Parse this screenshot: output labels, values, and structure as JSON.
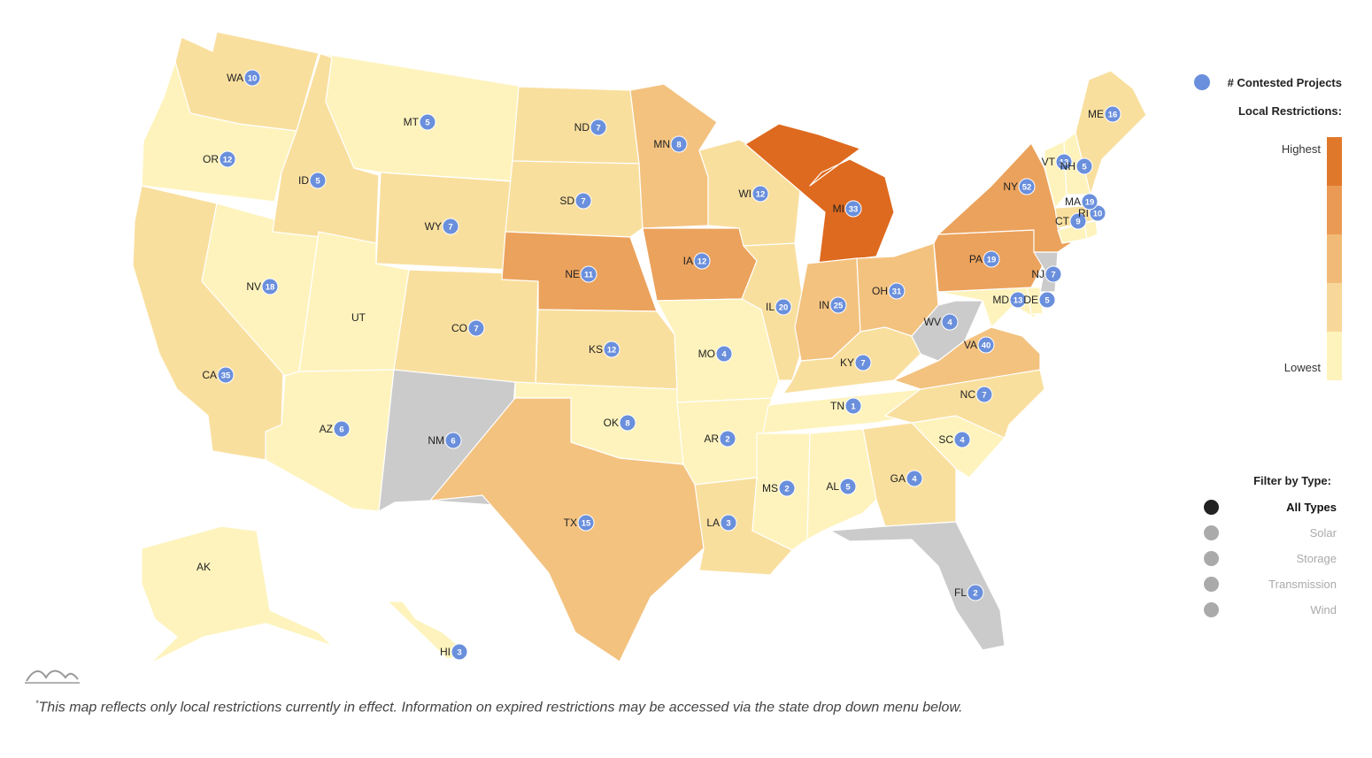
{
  "colors": {
    "level1": "#fef3bd",
    "level2": "#f9df9e",
    "level3": "#f3c27f",
    "level4": "#eba25c",
    "level5": "#de6a1f",
    "no_data": "#cbcbcb",
    "bubble": "#6a8fdc"
  },
  "legend": {
    "contested_label": "# Contested Projects",
    "restrictions_label": "Local Restrictions:",
    "highest_label": "Highest",
    "lowest_label": "Lowest",
    "scale_colors": [
      "#e0782b",
      "#ea9a55",
      "#f1bb77",
      "#f7d89a",
      "#fef3bd"
    ]
  },
  "filter": {
    "title": "Filter by Type:",
    "options": [
      {
        "label": "All Types",
        "selected": true
      },
      {
        "label": "Solar",
        "selected": false
      },
      {
        "label": "Storage",
        "selected": false
      },
      {
        "label": "Transmission",
        "selected": false
      },
      {
        "label": "Wind",
        "selected": false
      }
    ]
  },
  "footnote_mark": "*",
  "footnote": "This map reflects only local restrictions currently in effect. Information on expired restrictions may be accessed via the state drop down menu below.",
  "logo_icon": "mountain-wave-icon",
  "map_data": {
    "states": [
      {
        "abbr": "WA",
        "level": 2,
        "contested": 10
      },
      {
        "abbr": "OR",
        "level": 1,
        "contested": 12
      },
      {
        "abbr": "CA",
        "level": 2,
        "contested": 35
      },
      {
        "abbr": "NV",
        "level": 1,
        "contested": 18
      },
      {
        "abbr": "ID",
        "level": 2,
        "contested": 5
      },
      {
        "abbr": "MT",
        "level": 1,
        "contested": 5
      },
      {
        "abbr": "WY",
        "level": 2,
        "contested": 7
      },
      {
        "abbr": "UT",
        "level": 1,
        "contested": null
      },
      {
        "abbr": "AZ",
        "level": 1,
        "contested": 6
      },
      {
        "abbr": "CO",
        "level": 2,
        "contested": 7
      },
      {
        "abbr": "NM",
        "level": 0,
        "contested": 6
      },
      {
        "abbr": "ND",
        "level": 2,
        "contested": 7
      },
      {
        "abbr": "SD",
        "level": 2,
        "contested": 7
      },
      {
        "abbr": "NE",
        "level": 4,
        "contested": 11
      },
      {
        "abbr": "KS",
        "level": 2,
        "contested": 12
      },
      {
        "abbr": "OK",
        "level": 1,
        "contested": 8
      },
      {
        "abbr": "TX",
        "level": 3,
        "contested": 15
      },
      {
        "abbr": "MN",
        "level": 3,
        "contested": 8
      },
      {
        "abbr": "IA",
        "level": 4,
        "contested": 12
      },
      {
        "abbr": "MO",
        "level": 1,
        "contested": 4
      },
      {
        "abbr": "AR",
        "level": 1,
        "contested": 2
      },
      {
        "abbr": "LA",
        "level": 2,
        "contested": 3
      },
      {
        "abbr": "WI",
        "level": 2,
        "contested": 12
      },
      {
        "abbr": "IL",
        "level": 2,
        "contested": 20
      },
      {
        "abbr": "MI",
        "level": 5,
        "contested": 33
      },
      {
        "abbr": "IN",
        "level": 3,
        "contested": 25
      },
      {
        "abbr": "OH",
        "level": 3,
        "contested": 31
      },
      {
        "abbr": "KY",
        "level": 2,
        "contested": 7
      },
      {
        "abbr": "TN",
        "level": 1,
        "contested": 1
      },
      {
        "abbr": "MS",
        "level": 1,
        "contested": 2
      },
      {
        "abbr": "AL",
        "level": 1,
        "contested": 5
      },
      {
        "abbr": "GA",
        "level": 2,
        "contested": 4
      },
      {
        "abbr": "FL",
        "level": 0,
        "contested": 2
      },
      {
        "abbr": "SC",
        "level": 1,
        "contested": 4
      },
      {
        "abbr": "NC",
        "level": 2,
        "contested": 7
      },
      {
        "abbr": "VA",
        "level": 3,
        "contested": 40
      },
      {
        "abbr": "WV",
        "level": 0,
        "contested": 4
      },
      {
        "abbr": "MD",
        "level": 1,
        "contested": 13
      },
      {
        "abbr": "DE",
        "level": 1,
        "contested": 5
      },
      {
        "abbr": "PA",
        "level": 4,
        "contested": 19
      },
      {
        "abbr": "NJ",
        "level": 0,
        "contested": 7
      },
      {
        "abbr": "NY",
        "level": 4,
        "contested": 52
      },
      {
        "abbr": "CT",
        "level": 1,
        "contested": 9
      },
      {
        "abbr": "RI",
        "level": 1,
        "contested": 10
      },
      {
        "abbr": "MA",
        "level": 2,
        "contested": 19
      },
      {
        "abbr": "VT",
        "level": 1,
        "contested": 13
      },
      {
        "abbr": "NH",
        "level": 1,
        "contested": 5
      },
      {
        "abbr": "ME",
        "level": 2,
        "contested": 16
      },
      {
        "abbr": "AK",
        "level": 1,
        "contested": null
      },
      {
        "abbr": "HI",
        "level": 1,
        "contested": 3
      }
    ]
  }
}
